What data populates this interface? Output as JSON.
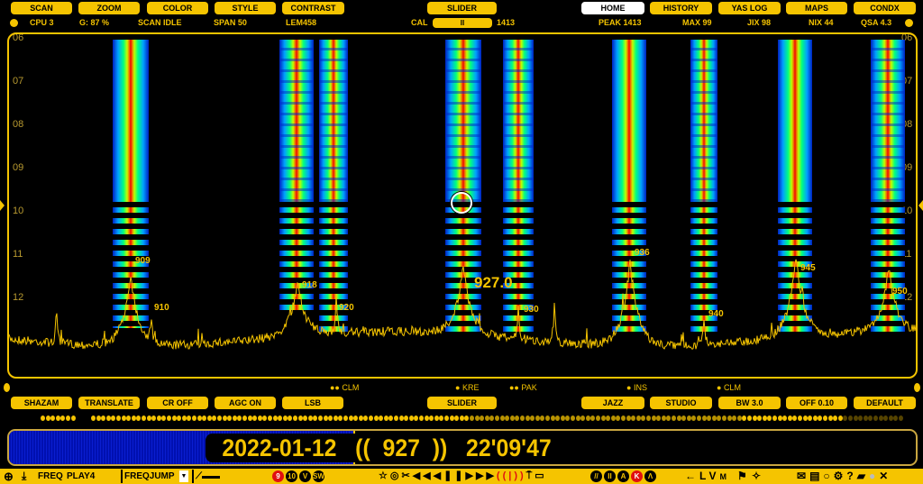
{
  "top_buttons": [
    "SCAN",
    "ZOOM",
    "COLOR",
    "STYLE",
    "CONTRAST"
  ],
  "center_button": "SLIDER",
  "right_buttons": [
    "HOME",
    "HISTORY",
    "YAS LOG",
    "MAPS",
    "CONDX"
  ],
  "active_tab": "HOME",
  "status": {
    "cpu": "CPU 3",
    "gain": "G: 87 %",
    "scan": "SCAN IDLE",
    "span": "SPAN 50",
    "lem": "LEM458",
    "cal": "CAL",
    "cal_slider": "II",
    "cal_value": "1413",
    "peak": "PEAK 1413",
    "max": "MAX 99",
    "jix": "JIX 98",
    "nix": "NIX 44",
    "qsa": "QSA 4.3"
  },
  "y_labels": [
    "06",
    "07",
    "08",
    "09",
    "10",
    "11",
    "12"
  ],
  "peaks": [
    "909",
    "910",
    "918",
    "920",
    "927.0",
    "930",
    "936",
    "940",
    "945",
    "950"
  ],
  "markers": [
    "CLM",
    "KRE",
    "PAK",
    "INS",
    "CLM"
  ],
  "bottom_buttons_left": [
    "SHAZAM",
    "TRANSLATE",
    "CR OFF",
    "AGC ON",
    "LSB"
  ],
  "bottom_center_button": "SLIDER",
  "bottom_buttons_right": [
    "JAZZ",
    "STUDIO",
    "BW 3.0",
    "OFF 0.10",
    "DEFAULT"
  ],
  "playback": {
    "date": "2022-01-12",
    "freq": "927",
    "time": "22'09'47",
    "progress_percent": 38,
    "text": "2022-01-12   ((  927  ))   22'09'47"
  },
  "toolbar": {
    "freq_label": "FREQ",
    "play_label": "PLAY4",
    "freqjump": "FREQJUMP",
    "band_badges": [
      "9",
      "10",
      "V",
      "SW"
    ],
    "media_icons": [
      "☆",
      "◎",
      "✂",
      "◀◀",
      "◀",
      "❚❚",
      "▶",
      "▶▶",
      "((|))",
      "⍑",
      "▭"
    ],
    "mode_badges": [
      "//",
      "II",
      "A",
      "K",
      "Λ"
    ],
    "nav_letters": [
      "←",
      "L",
      "V",
      "M"
    ],
    "right_icons": [
      "✉",
      "▤",
      "○",
      "⚙",
      "?",
      "▰",
      "●",
      "✕"
    ]
  },
  "colors": {
    "accent": "#f5c400",
    "background": "#000000",
    "progress": "#0a1ed0",
    "alert": "#e01010"
  }
}
